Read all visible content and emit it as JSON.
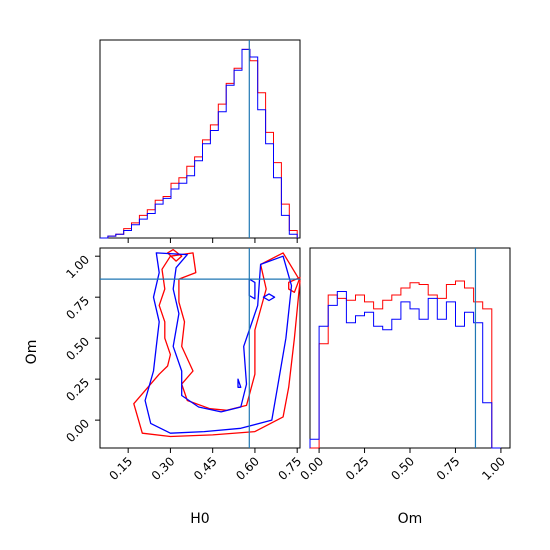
{
  "chart_data": {
    "type": "corner",
    "parameters": [
      "H0",
      "Om"
    ],
    "truths": {
      "H0": 0.58,
      "Om": 0.86
    },
    "colors": {
      "red": "#ff0000",
      "blue": "#0000ff",
      "truth": "#1f77b4"
    },
    "panels": {
      "hist_h0": {
        "xlim": [
          0.05,
          0.76
        ],
        "edges": [
          0.05,
          0.078,
          0.106,
          0.134,
          0.162,
          0.19,
          0.218,
          0.246,
          0.274,
          0.302,
          0.33,
          0.358,
          0.386,
          0.414,
          0.442,
          0.47,
          0.498,
          0.526,
          0.554,
          0.582,
          0.61,
          0.638,
          0.666,
          0.694,
          0.722,
          0.75
        ],
        "series": [
          {
            "color": "red",
            "values": [
              0,
              1,
              2,
              5,
              8,
              12,
              15,
              20,
              22,
              29,
              32,
              38,
              43,
              52,
              60,
              71,
              82,
              90,
              100,
              94,
              77,
              56,
              40,
              18,
              4
            ]
          },
          {
            "color": "blue",
            "values": [
              0,
              1,
              2,
              4,
              7,
              10,
              13,
              18,
              21,
              26,
              29,
              33,
              41,
              50,
              57,
              67,
              81,
              89,
              100,
              96,
              68,
              50,
              32,
              12,
              2
            ]
          }
        ],
        "ymax": 105
      },
      "hist_om": {
        "xlim": [
          -0.05,
          1.05
        ],
        "edges": [
          -0.05,
          0.0,
          0.05,
          0.1,
          0.15,
          0.2,
          0.25,
          0.3,
          0.35,
          0.4,
          0.45,
          0.5,
          0.55,
          0.6,
          0.65,
          0.7,
          0.75,
          0.8,
          0.85,
          0.9,
          0.95,
          1.0
        ],
        "series": [
          {
            "color": "red",
            "values": [
              0,
              60,
              88,
              86,
              85,
              88,
              84,
              80,
              85,
              88,
              92,
              95,
              94,
              88,
              86,
              94,
              96,
              92,
              84,
              80,
              0
            ]
          },
          {
            "color": "blue",
            "values": [
              5,
              70,
              82,
              90,
              72,
              76,
              78,
              70,
              68,
              74,
              84,
              80,
              74,
              86,
              74,
              84,
              70,
              78,
              72,
              26,
              0
            ]
          }
        ],
        "ymax": 115
      },
      "contour": {
        "xlim": [
          0.05,
          0.76
        ],
        "ylim": [
          -0.17,
          1.05
        ],
        "contours": [
          {
            "color": "red",
            "points": [
              [
                0.29,
                0.33
              ],
              [
                0.3,
                0.4
              ],
              [
                0.28,
                0.5
              ],
              [
                0.28,
                0.6
              ],
              [
                0.26,
                0.7
              ],
              [
                0.28,
                0.8
              ],
              [
                0.27,
                0.92
              ],
              [
                0.3,
                1.0
              ],
              [
                0.38,
                1.02
              ],
              [
                0.39,
                0.9
              ],
              [
                0.33,
                0.86
              ],
              [
                0.33,
                0.72
              ],
              [
                0.35,
                0.6
              ],
              [
                0.34,
                0.45
              ],
              [
                0.38,
                0.3
              ],
              [
                0.34,
                0.22
              ],
              [
                0.36,
                0.12
              ],
              [
                0.44,
                0.07
              ],
              [
                0.5,
                0.06
              ],
              [
                0.57,
                0.09
              ],
              [
                0.6,
                0.28
              ],
              [
                0.6,
                0.55
              ],
              [
                0.64,
                0.8
              ],
              [
                0.62,
                0.95
              ],
              [
                0.7,
                1.02
              ],
              [
                0.76,
                0.85
              ],
              [
                0.74,
                0.5
              ],
              [
                0.72,
                0.2
              ],
              [
                0.7,
                0.02
              ],
              [
                0.6,
                -0.07
              ],
              [
                0.45,
                -0.09
              ],
              [
                0.3,
                -0.1
              ],
              [
                0.2,
                -0.08
              ],
              [
                0.17,
                0.1
              ],
              [
                0.22,
                0.2
              ],
              [
                0.26,
                0.28
              ]
            ]
          },
          {
            "color": "red",
            "points": [
              [
                0.72,
                0.84
              ],
              [
                0.76,
                0.87
              ],
              [
                0.74,
                0.78
              ],
              [
                0.72,
                0.8
              ]
            ]
          },
          {
            "color": "red",
            "points": [
              [
                0.29,
                1.02
              ],
              [
                0.32,
                0.97
              ],
              [
                0.34,
                1.0
              ],
              [
                0.31,
                1.04
              ]
            ]
          },
          {
            "color": "blue",
            "points": [
              [
                0.24,
                0.3
              ],
              [
                0.25,
                0.45
              ],
              [
                0.26,
                0.6
              ],
              [
                0.24,
                0.75
              ],
              [
                0.26,
                0.9
              ],
              [
                0.25,
                1.02
              ],
              [
                0.36,
                1.01
              ],
              [
                0.32,
                0.93
              ],
              [
                0.31,
                0.8
              ],
              [
                0.33,
                0.65
              ],
              [
                0.31,
                0.45
              ],
              [
                0.34,
                0.3
              ],
              [
                0.34,
                0.15
              ],
              [
                0.4,
                0.08
              ],
              [
                0.48,
                0.05
              ],
              [
                0.55,
                0.08
              ],
              [
                0.57,
                0.22
              ],
              [
                0.56,
                0.45
              ],
              [
                0.61,
                0.7
              ],
              [
                0.62,
                0.95
              ],
              [
                0.7,
                1.0
              ],
              [
                0.73,
                0.82
              ],
              [
                0.71,
                0.5
              ],
              [
                0.68,
                0.2
              ],
              [
                0.66,
                0.0
              ],
              [
                0.55,
                -0.05
              ],
              [
                0.42,
                -0.07
              ],
              [
                0.3,
                -0.08
              ],
              [
                0.23,
                -0.02
              ],
              [
                0.21,
                0.12
              ]
            ]
          },
          {
            "color": "blue",
            "points": [
              [
                0.58,
                0.86
              ],
              [
                0.6,
                0.84
              ],
              [
                0.6,
                0.74
              ],
              [
                0.58,
                0.76
              ]
            ]
          },
          {
            "color": "blue",
            "points": [
              [
                0.65,
                0.77
              ],
              [
                0.67,
                0.75
              ],
              [
                0.65,
                0.73
              ],
              [
                0.63,
                0.75
              ]
            ]
          },
          {
            "color": "blue",
            "points": [
              [
                0.54,
                0.2
              ],
              [
                0.54,
                0.25
              ],
              [
                0.55,
                0.2
              ]
            ]
          }
        ]
      }
    },
    "ticks": {
      "h0": [
        "0.15",
        "0.30",
        "0.45",
        "0.60",
        "0.75"
      ],
      "om": [
        "0.00",
        "0.25",
        "0.50",
        "0.75",
        "1.00"
      ]
    },
    "xlabel_left": "H0",
    "ylabel_left": "Om",
    "xlabel_right": "Om"
  }
}
